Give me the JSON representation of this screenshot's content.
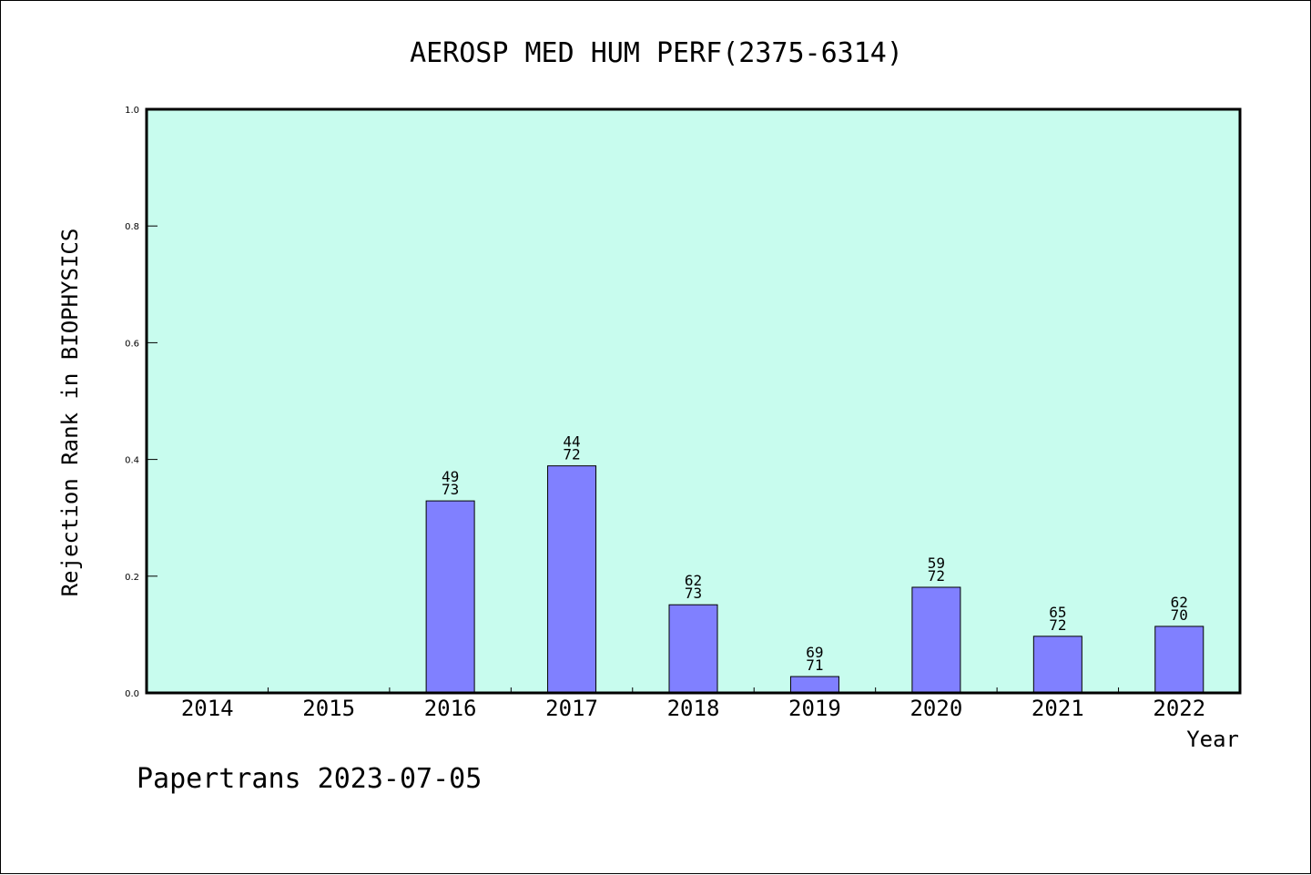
{
  "chart_data": {
    "type": "bar",
    "title": "AEROSP MED HUM PERF(2375-6314)",
    "xlabel": "Year",
    "ylabel": "Rejection Rank in BIOPHYSICS",
    "ylim": [
      0,
      1.0
    ],
    "yticks": [
      "0.0",
      "0.2",
      "0.4",
      "0.6",
      "0.8",
      "1.0"
    ],
    "ytick_values": [
      0,
      0.2,
      0.4,
      0.6,
      0.8,
      1.0
    ],
    "categories": [
      "2014",
      "2015",
      "2016",
      "2017",
      "2018",
      "2019",
      "2020",
      "2021",
      "2022"
    ],
    "values": [
      null,
      null,
      0.329,
      0.389,
      0.151,
      0.028,
      0.181,
      0.097,
      0.114
    ],
    "bar_labels": [
      null,
      null,
      {
        "top": "49",
        "bottom": "73"
      },
      {
        "top": "44",
        "bottom": "72"
      },
      {
        "top": "62",
        "bottom": "73"
      },
      {
        "top": "69",
        "bottom": "71"
      },
      {
        "top": "59",
        "bottom": "72"
      },
      {
        "top": "65",
        "bottom": "72"
      },
      {
        "top": "62",
        "bottom": "70"
      }
    ],
    "grid": false,
    "colors": {
      "plot_background": "#c8fcee",
      "bar_fill": "#8080ff",
      "bar_stroke": "#000000"
    }
  },
  "footer": "Papertrans 2023-07-05"
}
